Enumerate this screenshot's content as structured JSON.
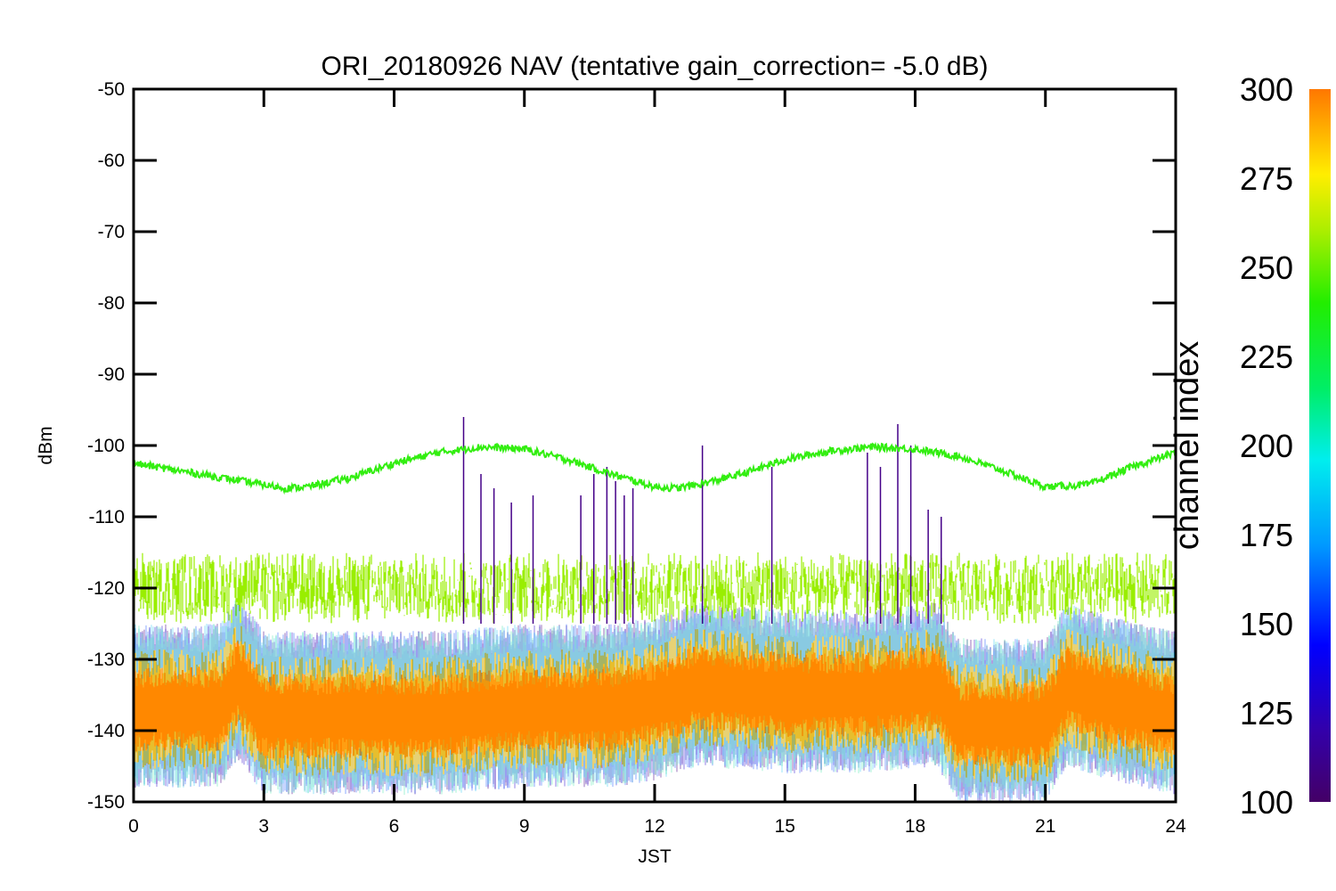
{
  "chart_data": {
    "type": "line",
    "title": "ORI_20180926 NAV (tentative gain_correction= -5.0 dB)",
    "xlabel": "JST",
    "ylabel": "dBm",
    "xlim": [
      0,
      24
    ],
    "ylim": [
      -150,
      -50
    ],
    "x_ticks": [
      "0",
      "3",
      "6",
      "9",
      "12",
      "15",
      "18",
      "21",
      "24"
    ],
    "y_ticks": [
      "-50",
      "-60",
      "-70",
      "-80",
      "-90",
      "-100",
      "-110",
      "-120",
      "-130",
      "-140",
      "-150"
    ],
    "grid": false,
    "colorbar": {
      "label": "channel index",
      "range": [
        100,
        300
      ],
      "ticks": [
        "100",
        "125",
        "150",
        "175",
        "200",
        "225",
        "250",
        "275",
        "300"
      ],
      "colormap": "rainbow (purple - blue - cyan - green - yellow - orange)"
    },
    "series": [
      {
        "color": "#33ee11",
        "description_values_dBm": "diurnal sinusoid",
        "x": [
          0,
          1,
          2,
          3,
          3.5,
          4,
          5,
          6,
          7,
          8,
          9,
          10,
          11,
          12,
          12.5,
          13,
          14,
          15,
          16,
          17,
          18,
          19,
          20,
          21,
          22,
          23,
          24
        ],
        "y": [
          -102.5,
          -103.5,
          -104.5,
          -105.5,
          -106,
          -105.8,
          -104.5,
          -102.5,
          -101,
          -100.2,
          -100.5,
          -102,
          -104,
          -105.8,
          -106,
          -105.5,
          -104,
          -102,
          -100.8,
          -100.2,
          -100.5,
          -101.5,
          -103.5,
          -105.8,
          -105.5,
          -103,
          -101
        ]
      },
      {
        "color": "#99ee00",
        "center_dBm": -120,
        "spread_dBm": [
          -127,
          -114
        ]
      },
      {
        "color": "#ff8800",
        "x": [
          0,
          2,
          2.4,
          3,
          5,
          7,
          9,
          11,
          12,
          13,
          15,
          17,
          18.5,
          19,
          21,
          21.5,
          22.5,
          24
        ],
        "center": [
          -137,
          -137,
          -133,
          -138,
          -138,
          -138,
          -137,
          -137,
          -136,
          -134,
          -135,
          -135,
          -134,
          -139,
          -139,
          -134,
          -136,
          -138
        ]
      }
    ],
    "spikes": {
      "color": "#440088",
      "x": [
        7.6,
        8,
        8.3,
        8.7,
        9.2,
        10.3,
        10.6,
        10.9,
        11.1,
        11.3,
        11.5,
        13.1,
        14.7,
        16.9,
        17.2,
        17.6,
        17.9,
        18.3,
        18.6
      ],
      "peak_dBm": [
        -96,
        -104,
        -106,
        -108,
        -107,
        -107,
        -104,
        -103,
        -105,
        -107,
        -106,
        -100,
        -103,
        -101,
        -103,
        -97,
        -100,
        -109,
        -110
      ]
    }
  }
}
